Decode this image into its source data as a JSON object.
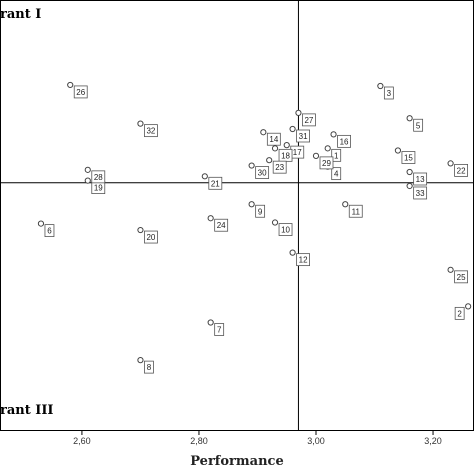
{
  "chart_data": {
    "type": "scatter",
    "xlabel": "Performance",
    "ylabel": "",
    "x_ticks": [
      "2,60",
      "2,80",
      "3,00",
      "3,20"
    ],
    "x_tick_values": [
      2.6,
      2.8,
      3.0,
      3.2
    ],
    "xlim": [
      2.46,
      3.27
    ],
    "ylim": [
      2.0,
      6.0
    ],
    "reference_lines": {
      "x": 2.97,
      "y": 4.3
    },
    "quadrant_labels": [
      {
        "text": "rant I",
        "position": "top-left"
      },
      {
        "text": "rant III",
        "position": "bottom-left"
      }
    ],
    "grid": false,
    "legend": "none",
    "points": [
      {
        "label": "1",
        "x": 3.02,
        "y": 4.62
      },
      {
        "label": "2",
        "x": 3.26,
        "y": 3.15
      },
      {
        "label": "3",
        "x": 3.11,
        "y": 5.2
      },
      {
        "label": "4",
        "x": 3.02,
        "y": 4.45
      },
      {
        "label": "5",
        "x": 3.16,
        "y": 4.9
      },
      {
        "label": "6",
        "x": 2.53,
        "y": 3.92
      },
      {
        "label": "7",
        "x": 2.82,
        "y": 3.0
      },
      {
        "label": "8",
        "x": 2.7,
        "y": 2.65
      },
      {
        "label": "9",
        "x": 2.89,
        "y": 4.1
      },
      {
        "label": "10",
        "x": 2.93,
        "y": 3.93
      },
      {
        "label": "11",
        "x": 3.05,
        "y": 4.1
      },
      {
        "label": "12",
        "x": 2.96,
        "y": 3.65
      },
      {
        "label": "13",
        "x": 3.16,
        "y": 4.4
      },
      {
        "label": "14",
        "x": 2.91,
        "y": 4.77
      },
      {
        "label": "15",
        "x": 3.14,
        "y": 4.6
      },
      {
        "label": "16",
        "x": 3.03,
        "y": 4.75
      },
      {
        "label": "17",
        "x": 2.95,
        "y": 4.65
      },
      {
        "label": "18",
        "x": 2.93,
        "y": 4.62
      },
      {
        "label": "19",
        "x": 2.61,
        "y": 4.32
      },
      {
        "label": "20",
        "x": 2.7,
        "y": 3.86
      },
      {
        "label": "21",
        "x": 2.81,
        "y": 4.36
      },
      {
        "label": "22",
        "x": 3.23,
        "y": 4.48
      },
      {
        "label": "23",
        "x": 2.92,
        "y": 4.51
      },
      {
        "label": "24",
        "x": 2.82,
        "y": 3.97
      },
      {
        "label": "25",
        "x": 3.23,
        "y": 3.49
      },
      {
        "label": "26",
        "x": 2.58,
        "y": 5.21
      },
      {
        "label": "27",
        "x": 2.97,
        "y": 4.95
      },
      {
        "label": "28",
        "x": 2.61,
        "y": 4.42
      },
      {
        "label": "29",
        "x": 3.0,
        "y": 4.55
      },
      {
        "label": "30",
        "x": 2.89,
        "y": 4.46
      },
      {
        "label": "31",
        "x": 2.96,
        "y": 4.8
      },
      {
        "label": "32",
        "x": 2.7,
        "y": 4.85
      },
      {
        "label": "33",
        "x": 3.16,
        "y": 4.27
      }
    ]
  }
}
